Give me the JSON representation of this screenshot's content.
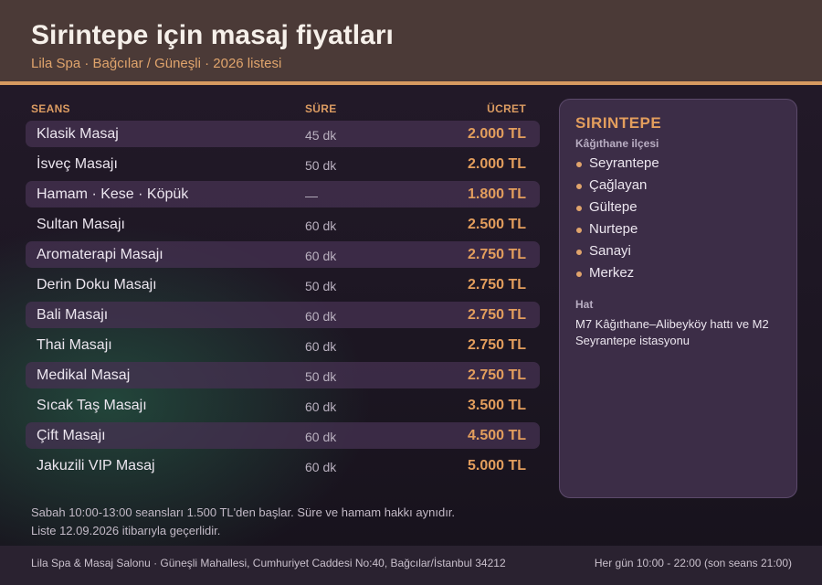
{
  "header": {
    "title": "Sirintepe için masaj fiyatları",
    "subtitle": "Lila Spa · Bağcılar / Güneşli · 2026 listesi"
  },
  "colors": {
    "accent": "#e39e5d",
    "header_bg": "#4b3a37",
    "panel_bg": "#3c2d47"
  },
  "table": {
    "columns": {
      "name": "SEANS",
      "duration": "SÜRE",
      "price": "ÜCRET"
    },
    "rows": [
      {
        "name": "Klasik Masaj",
        "duration": "45 dk",
        "price": "2.000 TL"
      },
      {
        "name": "İsveç Masajı",
        "duration": "50 dk",
        "price": "2.000 TL"
      },
      {
        "name": "Hamam · Kese · Köpük",
        "duration": "—",
        "price": "1.800 TL"
      },
      {
        "name": "Sultan Masajı",
        "duration": "60 dk",
        "price": "2.500 TL"
      },
      {
        "name": "Aromaterapi Masajı",
        "duration": "60 dk",
        "price": "2.750 TL"
      },
      {
        "name": "Derin Doku Masajı",
        "duration": "50 dk",
        "price": "2.750 TL"
      },
      {
        "name": "Bali Masajı",
        "duration": "60 dk",
        "price": "2.750 TL"
      },
      {
        "name": "Thai Masajı",
        "duration": "60 dk",
        "price": "2.750 TL"
      },
      {
        "name": "Medikal Masaj",
        "duration": "50 dk",
        "price": "2.750 TL"
      },
      {
        "name": "Sıcak Taş Masajı",
        "duration": "60 dk",
        "price": "3.500 TL"
      },
      {
        "name": "Çift Masajı",
        "duration": "60 dk",
        "price": "4.500 TL"
      },
      {
        "name": "Jakuzili VIP Masaj",
        "duration": "60 dk",
        "price": "5.000 TL"
      }
    ]
  },
  "sidebar": {
    "title": "SIRINTEPE",
    "subtitle": "Kâğıthane ilçesi",
    "items": [
      "Seyrantepe",
      "Çağlayan",
      "Gültepe",
      "Nurtepe",
      "Sanayi",
      "Merkez"
    ],
    "line_label": "Hat",
    "line_text": "M7 Kâğıthane–Alibeyköy hattı ve M2 Seyrantepe istasyonu"
  },
  "notes": {
    "line1": "Sabah 10:00-13:00 seansları 1.500 TL'den başlar. Süre ve hamam hakkı aynıdır.",
    "line2": "Liste 12.09.2026 itibarıyla geçerlidir."
  },
  "footer": {
    "address": "Lila Spa & Masaj Salonu · Güneşli Mahallesi, Cumhuriyet Caddesi No:40, Bağcılar/İstanbul 34212",
    "hours": "Her gün 10:00 - 22:00 (son seans 21:00)"
  }
}
